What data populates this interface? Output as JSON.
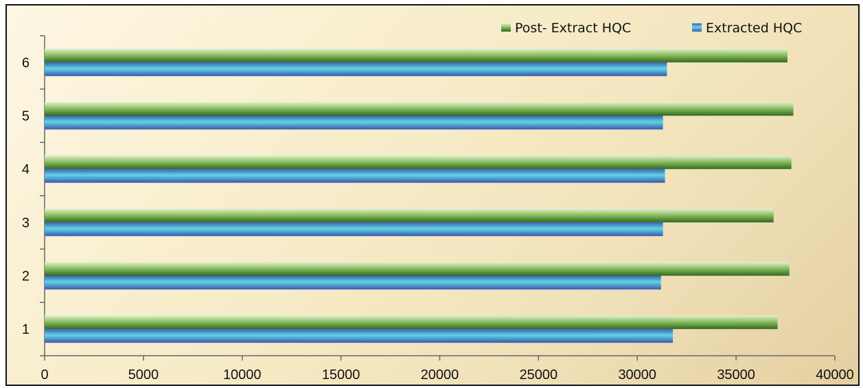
{
  "chart_data": {
    "type": "bar",
    "orientation": "horizontal",
    "categories": [
      "1",
      "2",
      "3",
      "4",
      "5",
      "6"
    ],
    "series": [
      {
        "name": "Post- Extract HQC",
        "values": [
          37100,
          37700,
          36900,
          37800,
          37900,
          37600
        ],
        "color": "#4e8a32",
        "highlight": "#d8ebbd",
        "shade": "#2f6a1f"
      },
      {
        "name": "Extracted HQC",
        "values": [
          31800,
          31200,
          31300,
          31400,
          31300,
          31500
        ],
        "color": "#3aa8cf",
        "highlight": "#6fd9e6",
        "shade": "#3a5fb6"
      }
    ],
    "xlim": [
      0,
      40000
    ],
    "xticks": [
      0,
      5000,
      10000,
      15000,
      20000,
      25000,
      30000,
      35000,
      40000
    ],
    "xtick_labels": [
      "0",
      "5000",
      "10000",
      "15000",
      "20000",
      "25000",
      "30000",
      "35000",
      "40000"
    ],
    "title": "",
    "xlabel": "",
    "ylabel": "",
    "grid": false,
    "legend_position": "top-right",
    "axis_color": "#666666"
  }
}
